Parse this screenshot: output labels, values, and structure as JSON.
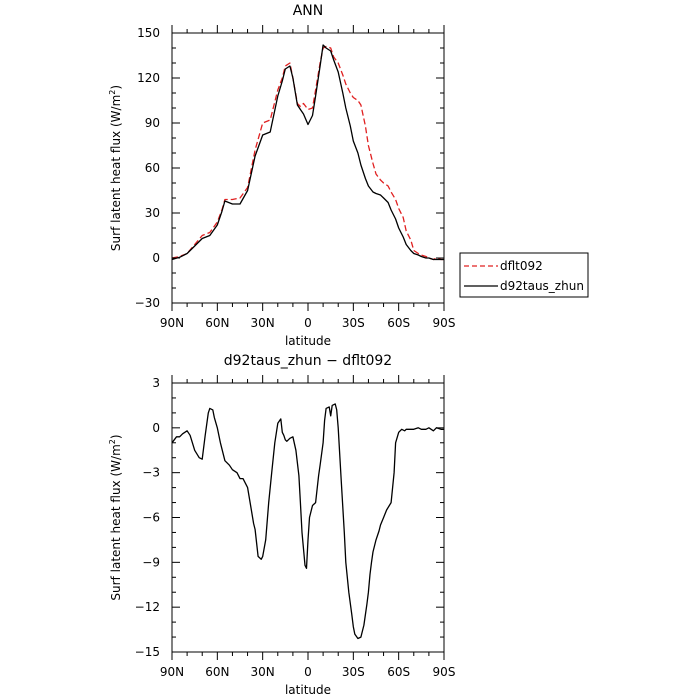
{
  "chart_data": [
    {
      "type": "line",
      "title": "ANN",
      "xlabel": "latitude",
      "ylabel": "Surf latent heat flux (W/m",
      "ylabel_sup": "2",
      "ylabel_close": ")",
      "xlim": [
        90,
        -90
      ],
      "ylim": [
        -30,
        150
      ],
      "xticks": [
        90,
        60,
        30,
        0,
        -30,
        -60,
        -90
      ],
      "xtick_labels": [
        "90N",
        "60N",
        "30N",
        "0",
        "30S",
        "60S",
        "90S"
      ],
      "yticks": [
        -30,
        0,
        30,
        60,
        90,
        120,
        150
      ],
      "ytick_labels": [
        "−30",
        "0",
        "30",
        "60",
        "90",
        "120",
        "150"
      ],
      "grid": false,
      "legend": "right",
      "series": [
        {
          "name": "dflt092",
          "color": "#e02020",
          "dash": "dashed",
          "x": [
            90,
            85,
            80,
            75,
            70,
            65,
            60,
            57,
            55,
            50,
            45,
            40,
            35,
            30,
            25,
            20,
            17,
            15,
            12,
            10,
            7,
            5,
            3,
            0,
            -3,
            -5,
            -8,
            -10,
            -12,
            -15,
            -17,
            -20,
            -23,
            -25,
            -28,
            -30,
            -33,
            -35,
            -38,
            -40,
            -43,
            -45,
            -48,
            -50,
            -53,
            -55,
            -58,
            -60,
            -63,
            -65,
            -68,
            -70,
            -73,
            -75,
            -78,
            -80,
            -83,
            -85,
            -88,
            -90
          ],
          "y": [
            0,
            1,
            3,
            9,
            15,
            17,
            24,
            32,
            39,
            39,
            40,
            47,
            72,
            90,
            92,
            112,
            120,
            128,
            130,
            120,
            103,
            101,
            103,
            99,
            100,
            112,
            130,
            140,
            141,
            140,
            134,
            130,
            122,
            116,
            110,
            107,
            105,
            102,
            88,
            75,
            63,
            56,
            52,
            50,
            48,
            44,
            39,
            33,
            27,
            18,
            12,
            5,
            3,
            2,
            1,
            0,
            -1,
            0,
            -1,
            -1
          ]
        },
        {
          "name": "d92taus_zhun",
          "color": "#000000",
          "dash": "solid",
          "x": [
            90,
            85,
            80,
            75,
            70,
            65,
            60,
            57,
            55,
            50,
            45,
            40,
            35,
            30,
            25,
            20,
            17,
            15,
            12,
            10,
            7,
            5,
            3,
            0,
            -3,
            -5,
            -8,
            -10,
            -12,
            -15,
            -17,
            -20,
            -23,
            -25,
            -28,
            -30,
            -33,
            -35,
            -38,
            -40,
            -43,
            -45,
            -48,
            -50,
            -53,
            -55,
            -58,
            -60,
            -63,
            -65,
            -68,
            -70,
            -73,
            -75,
            -78,
            -80,
            -83,
            -85,
            -88,
            -90
          ],
          "y": [
            -1,
            0.5,
            3,
            8,
            13,
            15,
            22,
            31,
            38,
            36,
            36,
            45,
            68,
            82,
            84,
            108,
            118,
            126,
            128,
            120,
            102,
            99,
            96,
            89,
            95,
            108,
            128,
            142,
            140,
            138,
            132,
            124,
            110,
            100,
            88,
            78,
            70,
            62,
            53,
            48,
            44,
            43,
            42,
            40,
            37,
            32,
            26,
            20,
            14,
            9,
            5,
            3,
            2,
            1,
            0,
            0,
            -1,
            -1,
            -1,
            -1
          ]
        }
      ]
    },
    {
      "type": "line",
      "title": "d92taus_zhun − dflt092",
      "xlabel": "latitude",
      "ylabel": "Surf latent heat flux (W/m",
      "ylabel_sup": "2",
      "ylabel_close": ")",
      "xlim": [
        90,
        -90
      ],
      "ylim": [
        -15,
        3
      ],
      "xticks": [
        90,
        60,
        30,
        0,
        -30,
        -60,
        -90
      ],
      "xtick_labels": [
        "90N",
        "60N",
        "30N",
        "0",
        "30S",
        "60S",
        "90S"
      ],
      "yticks": [
        -15,
        -12,
        -9,
        -6,
        -3,
        0,
        3
      ],
      "ytick_labels": [
        "−15",
        "−12",
        "−9",
        "−6",
        "−3",
        "0",
        "3"
      ],
      "grid": false,
      "series": [
        {
          "color": "#000000",
          "dash": "solid",
          "x": [
            90,
            87,
            85,
            83,
            80,
            78,
            75,
            72,
            70,
            68,
            66,
            65,
            63,
            62,
            60,
            58,
            55,
            52,
            50,
            47,
            45,
            43,
            40,
            38,
            36,
            35,
            33,
            31,
            30,
            28,
            26,
            24,
            22,
            20,
            18,
            17,
            16,
            15,
            14,
            12,
            10,
            8,
            6,
            5,
            4,
            2,
            1,
            0,
            -1,
            -3,
            -5,
            -7,
            -8,
            -10,
            -11,
            -12,
            -14,
            -15,
            -16,
            -18,
            -19,
            -20,
            -22,
            -24,
            -25,
            -27,
            -29,
            -30,
            -31,
            -33,
            -35,
            -37,
            -38,
            -39,
            -40,
            -41,
            -42,
            -43,
            -45,
            -47,
            -48,
            -50,
            -52,
            -55,
            -57,
            -58,
            -60,
            -62,
            -64,
            -65,
            -68,
            -70,
            -73,
            -75,
            -78,
            -80,
            -83,
            -85,
            -88,
            -90
          ],
          "y": [
            -1.0,
            -0.6,
            -0.6,
            -0.4,
            -0.2,
            -0.5,
            -1.5,
            -2.0,
            -2.1,
            -0.5,
            1.0,
            1.3,
            1.2,
            0.7,
            0.0,
            -1.0,
            -2.2,
            -2.5,
            -2.8,
            -3.0,
            -3.4,
            -3.4,
            -4.0,
            -5.2,
            -6.4,
            -6.8,
            -8.6,
            -8.8,
            -8.6,
            -7.5,
            -5.0,
            -3.0,
            -1.0,
            0.3,
            0.6,
            -0.3,
            -0.5,
            -0.8,
            -0.9,
            -0.7,
            -0.6,
            -1.5,
            -3.2,
            -5.0,
            -7.0,
            -9.2,
            -9.4,
            -7.5,
            -6.0,
            -5.2,
            -5.0,
            -3.2,
            -2.5,
            -1.0,
            0.5,
            1.3,
            1.4,
            0.8,
            1.5,
            1.6,
            1.2,
            0.0,
            -3.5,
            -7.0,
            -9.0,
            -11.0,
            -12.5,
            -13.3,
            -13.8,
            -14.1,
            -14.0,
            -13.2,
            -12.5,
            -11.8,
            -11.0,
            -9.8,
            -9.0,
            -8.3,
            -7.5,
            -6.9,
            -6.5,
            -6.0,
            -5.5,
            -5.0,
            -3.0,
            -1.0,
            -0.3,
            -0.1,
            -0.2,
            -0.1,
            -0.1,
            -0.1,
            0.0,
            -0.1,
            -0.1,
            0.0,
            -0.2,
            0.0,
            -0.1,
            -0.1
          ]
        }
      ]
    }
  ]
}
